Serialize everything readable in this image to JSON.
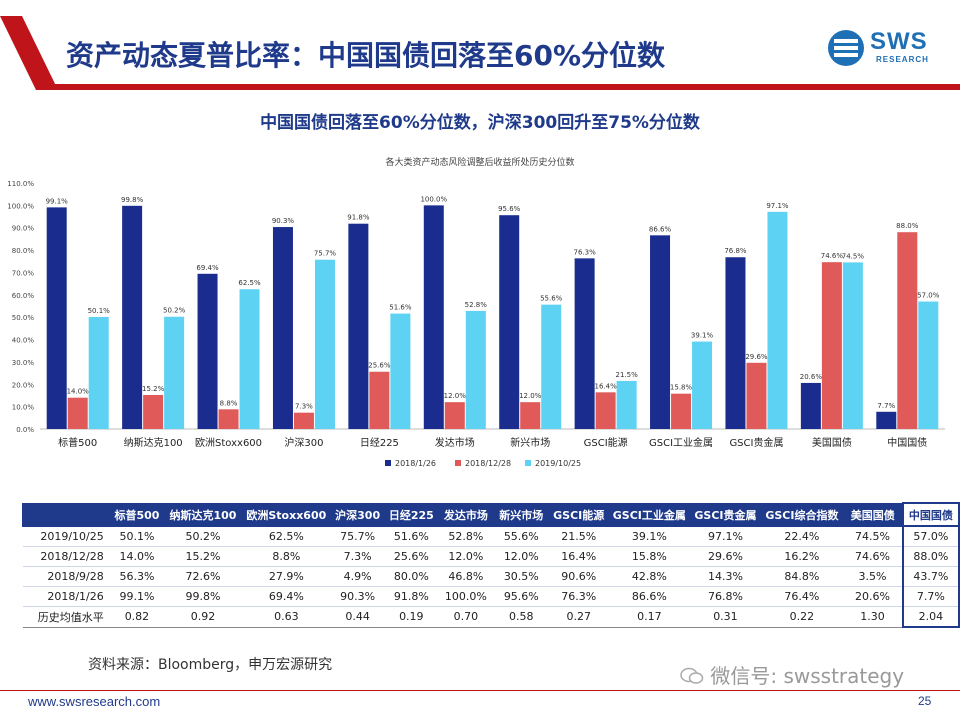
{
  "header": {
    "title": "资产动态夏普比率：中国国债回落至60%分位数"
  },
  "logo": {
    "text": "SWS",
    "sub": "RESEARCH"
  },
  "subtitle": "中国国债回落至60%分位数，沪深300回升至75%分位数",
  "colors": {
    "s1": "#1a2d8f",
    "s2": "#e05a5a",
    "s3": "#5ed2f2",
    "title": "#1f3a8a",
    "accent": "#c0141b"
  },
  "chart_data": {
    "type": "bar",
    "title": "各大类资产动态风险调整后收益所处历史分位数",
    "categories": [
      "标普500",
      "纳斯达克100",
      "欧洲Stoxx600",
      "沪深300",
      "日经225",
      "发达市场",
      "新兴市场",
      "GSCI能源",
      "GSCI工业金属",
      "GSCI贵金属",
      "美国国债",
      "中国国债"
    ],
    "series": [
      {
        "name": "2018/1/26",
        "values": [
          99.1,
          99.8,
          69.4,
          90.3,
          91.8,
          100.0,
          95.6,
          76.3,
          86.6,
          76.8,
          20.6,
          7.7
        ]
      },
      {
        "name": "2018/12/28",
        "values": [
          14.0,
          15.2,
          8.8,
          7.3,
          25.6,
          12.0,
          12.0,
          16.4,
          15.8,
          29.6,
          74.6,
          88.0
        ]
      },
      {
        "name": "2019/10/25",
        "values": [
          50.1,
          50.2,
          62.5,
          75.7,
          51.6,
          52.8,
          55.6,
          21.5,
          39.1,
          97.1,
          74.5,
          57.0
        ]
      }
    ],
    "ylim": [
      0,
      110
    ],
    "yticks": [
      "0.0%",
      "10.0%",
      "20.0%",
      "30.0%",
      "40.0%",
      "50.0%",
      "60.0%",
      "70.0%",
      "80.0%",
      "90.0%",
      "100.0%",
      "110.0%"
    ],
    "legend_position": "bottom"
  },
  "table": {
    "headers": [
      "",
      "标普500",
      "纳斯达克100",
      "欧洲Stoxx600",
      "沪深300",
      "日经225",
      "发达市场",
      "新兴市场",
      "GSCI能源",
      "GSCI工业金属",
      "GSCI贵金属",
      "GSCI综合指数",
      "美国国债",
      "中国国债"
    ],
    "rows": [
      [
        "2019/10/25",
        "50.1%",
        "50.2%",
        "62.5%",
        "75.7%",
        "51.6%",
        "52.8%",
        "55.6%",
        "21.5%",
        "39.1%",
        "97.1%",
        "22.4%",
        "74.5%",
        "57.0%"
      ],
      [
        "2018/12/28",
        "14.0%",
        "15.2%",
        "8.8%",
        "7.3%",
        "25.6%",
        "12.0%",
        "12.0%",
        "16.4%",
        "15.8%",
        "29.6%",
        "16.2%",
        "74.6%",
        "88.0%"
      ],
      [
        "2018/9/28",
        "56.3%",
        "72.6%",
        "27.9%",
        "4.9%",
        "80.0%",
        "46.8%",
        "30.5%",
        "90.6%",
        "42.8%",
        "14.3%",
        "84.8%",
        "3.5%",
        "43.7%"
      ],
      [
        "2018/1/26",
        "99.1%",
        "99.8%",
        "69.4%",
        "90.3%",
        "91.8%",
        "100.0%",
        "95.6%",
        "76.3%",
        "86.6%",
        "76.8%",
        "76.4%",
        "20.6%",
        "7.7%"
      ],
      [
        "历史均值水平",
        "0.82",
        "0.92",
        "0.63",
        "0.44",
        "0.19",
        "0.70",
        "0.58",
        "0.27",
        "0.17",
        "0.31",
        "0.22",
        "1.30",
        "2.04"
      ]
    ]
  },
  "footer": {
    "source": "资料来源：Bloomberg，申万宏源研究",
    "wechat": "微信号: swsstrategy",
    "website": "www.swsresearch.com",
    "page": "25"
  }
}
